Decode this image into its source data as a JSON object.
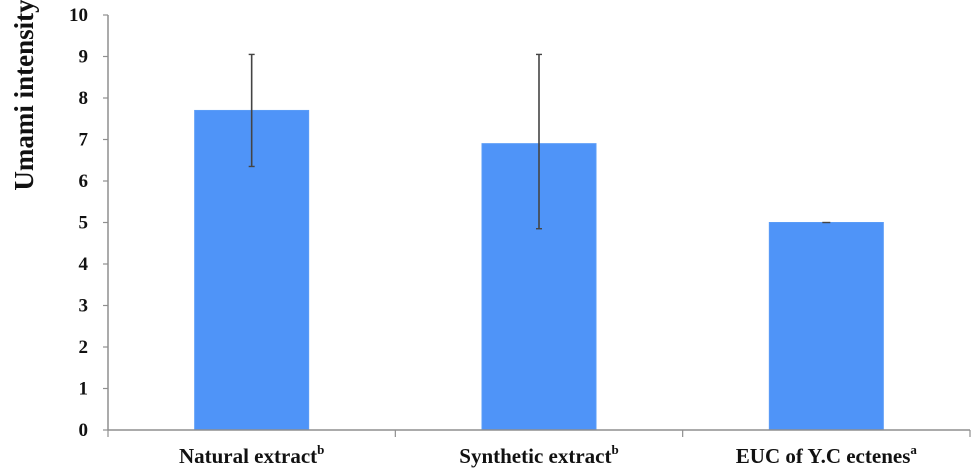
{
  "chart_data": {
    "type": "bar",
    "title": "",
    "xlabel": "",
    "ylabel": "Umami intensity",
    "ylim": [
      0,
      10
    ],
    "yticks": [
      0,
      1,
      2,
      3,
      4,
      5,
      6,
      7,
      8,
      9,
      10
    ],
    "grid": false,
    "legend": "none",
    "categories": [
      {
        "label": "Natural extract",
        "superscript": "b"
      },
      {
        "label": "Synthetic extract",
        "superscript": "b"
      },
      {
        "label": "EUC of  Y.C ectenes",
        "superscript": "a"
      }
    ],
    "values": [
      7.7,
      6.9,
      5.0
    ],
    "error_low": [
      6.35,
      4.85,
      5.0
    ],
    "error_high": [
      9.05,
      9.05,
      5.0
    ],
    "colors": {
      "bar": "#4f94f8",
      "bar_edge": "#5a9cf7",
      "error_bar": "#444444",
      "axis": "#8f8f8f",
      "text": "#111111"
    }
  }
}
